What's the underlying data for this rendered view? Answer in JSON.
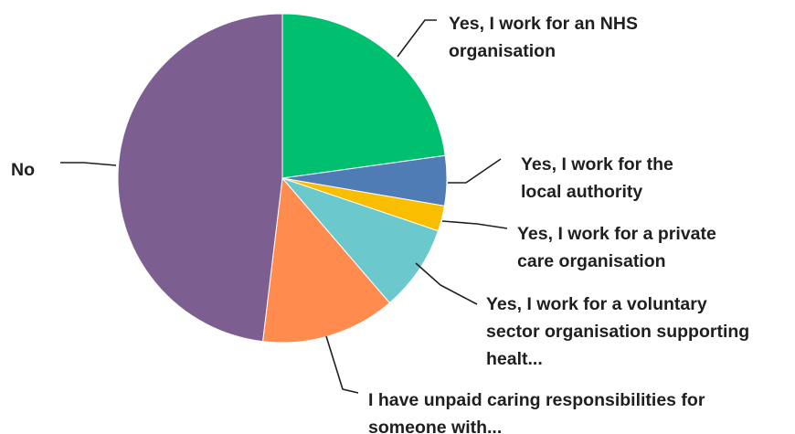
{
  "chart_data": {
    "type": "pie",
    "title": "",
    "categories": [
      "Yes, I work for an NHS organisation",
      "Yes, I work for the local authority",
      "Yes, I work for a private care organisation",
      "Yes, I work for a voluntary sector organisation supporting healt...",
      "I have unpaid caring responsibilities for someone with...",
      "No"
    ],
    "label_lines": [
      [
        "Yes, I work for an NHS",
        "organisation"
      ],
      [
        "Yes, I work for the",
        "local authority"
      ],
      [
        "Yes, I work for a private",
        "care organisation"
      ],
      [
        "Yes, I work for a voluntary",
        "sector organisation supporting",
        "healt..."
      ],
      [
        "I have unpaid caring responsibilities for",
        "someone with..."
      ],
      [
        "No"
      ]
    ],
    "values": [
      22.8,
      4.9,
      2.5,
      8.5,
      13.2,
      48.1
    ],
    "unit": "percent",
    "colors": [
      "#00BF6F",
      "#507CB6",
      "#F9BE00",
      "#6BC8CD",
      "#FF8B4F",
      "#7D5E90"
    ],
    "legend": "none",
    "start_angle": "12 o'clock",
    "direction": "clockwise",
    "labels": "outside with leader lines"
  }
}
